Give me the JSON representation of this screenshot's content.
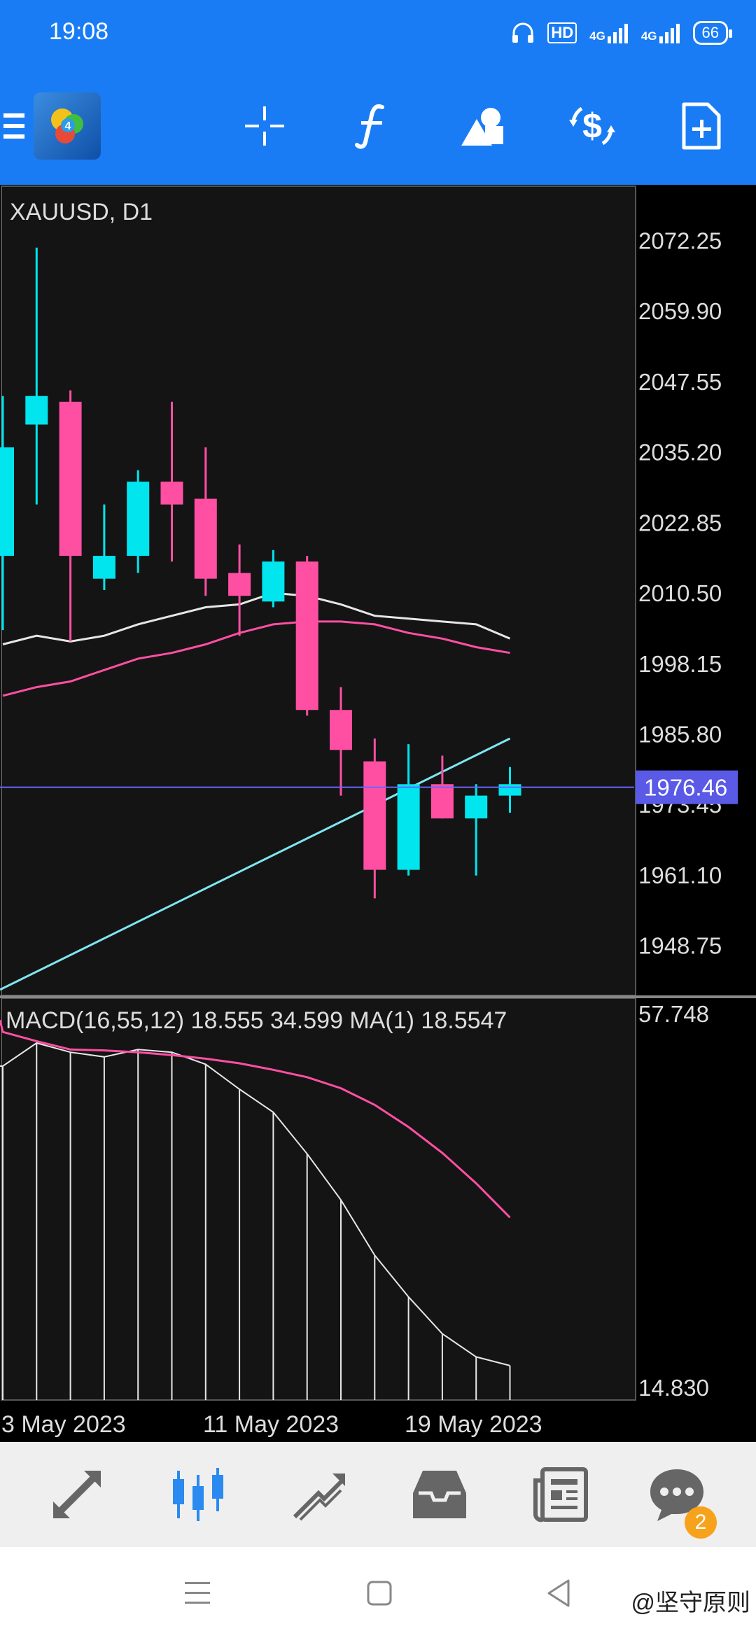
{
  "status_bar": {
    "time": "19:08",
    "icons": [
      "headphones-icon",
      "hd-icon",
      "signal-4g-1-icon",
      "signal-4g-2-icon"
    ],
    "hd_label": "HD",
    "net1": "4G",
    "net2": "4G",
    "battery": "66"
  },
  "toolbar": {
    "buttons": [
      "crosshair-icon",
      "indicators-icon",
      "objects-icon",
      "trade-icon",
      "new-order-icon"
    ]
  },
  "chart": {
    "symbol_label": "XAUUSD, D1",
    "price_levels": [
      "2072.25",
      "2059.90",
      "2047.55",
      "2035.20",
      "2022.85",
      "2010.50",
      "1998.15",
      "1985.80",
      "1973.45",
      "1961.10",
      "1948.75"
    ],
    "current_price": "1976.46",
    "macd_label": "MACD(16,55,12) 18.555 34.599 MA(1) 18.5547",
    "macd_levels": [
      "57.748",
      "14.830"
    ],
    "date_labels": [
      "3 May 2023",
      "11 May 2023",
      "19 May 2023"
    ],
    "colors": {
      "bull": "#00e5ee",
      "bear": "#ff4fa3",
      "ma_white": "#e6e6e6",
      "ma_pink": "#ff4fa3",
      "ma_cyan": "#7fe6f0",
      "price_line": "#6666ff",
      "price_tag": "#5a5ae6"
    }
  },
  "chart_data": {
    "type": "candlestick",
    "title": "XAUUSD, D1",
    "ylim": [
      1940,
      2082
    ],
    "candles": [
      {
        "o": 2017,
        "h": 2045,
        "l": 2004,
        "c": 2036
      },
      {
        "o": 2040,
        "h": 2071,
        "l": 2026,
        "c": 2045
      },
      {
        "o": 2044,
        "h": 2046,
        "l": 2002,
        "c": 2017
      },
      {
        "o": 2013,
        "h": 2026,
        "l": 2011,
        "c": 2017
      },
      {
        "o": 2017,
        "h": 2032,
        "l": 2014,
        "c": 2030
      },
      {
        "o": 2030,
        "h": 2044,
        "l": 2016,
        "c": 2026
      },
      {
        "o": 2027,
        "h": 2036,
        "l": 2010,
        "c": 2013
      },
      {
        "o": 2014,
        "h": 2019,
        "l": 2003,
        "c": 2010
      },
      {
        "o": 2009,
        "h": 2018,
        "l": 2008,
        "c": 2016
      },
      {
        "o": 2016,
        "h": 2017,
        "l": 1989,
        "c": 1990
      },
      {
        "o": 1990,
        "h": 1994,
        "l": 1975,
        "c": 1983
      },
      {
        "o": 1981,
        "h": 1985,
        "l": 1957,
        "c": 1962
      },
      {
        "o": 1962,
        "h": 1984,
        "l": 1961,
        "c": 1977
      },
      {
        "o": 1977,
        "h": 1982,
        "l": 1971,
        "c": 1971
      },
      {
        "o": 1971,
        "h": 1977,
        "l": 1961,
        "c": 1975
      },
      {
        "o": 1975,
        "h": 1980,
        "l": 1972,
        "c": 1977
      }
    ],
    "ma_white": [
      2001.5,
      2003,
      2002,
      2003,
      2005,
      2006.5,
      2008,
      2008.5,
      2010.5,
      2010,
      2008.5,
      2006.5,
      2006,
      2005.5,
      2005,
      2002.5
    ],
    "ma_pink": [
      1992.5,
      1994,
      1995,
      1997,
      1999,
      2000,
      2001.5,
      2003.5,
      2005,
      2005.5,
      2005.5,
      2005,
      2003.5,
      2002.5,
      2001,
      2000
    ],
    "ma_cyan_start": 1941,
    "ma_cyan_end": 1985,
    "macd": {
      "ylim": [
        14.83,
        57.748
      ],
      "histogram": [
        51,
        53.5,
        52.5,
        52,
        52.8,
        52.5,
        51.2,
        48.5,
        46,
        41.5,
        36.5,
        30.5,
        26,
        22,
        19.5,
        18.555
      ],
      "signal": [
        54.7,
        53.7,
        52.8,
        52.7,
        52.5,
        52.2,
        51.8,
        51.3,
        50.6,
        49.8,
        48.6,
        46.8,
        44.4,
        41.6,
        38.3,
        34.599
      ]
    }
  },
  "bottom_nav": {
    "items": [
      "quotes-icon",
      "chart-icon",
      "trade-icon",
      "history-icon",
      "news-icon",
      "chat-icon"
    ],
    "active": 1,
    "chat_badge": "2"
  },
  "system_nav": {
    "watermark": "@坚守原则"
  }
}
